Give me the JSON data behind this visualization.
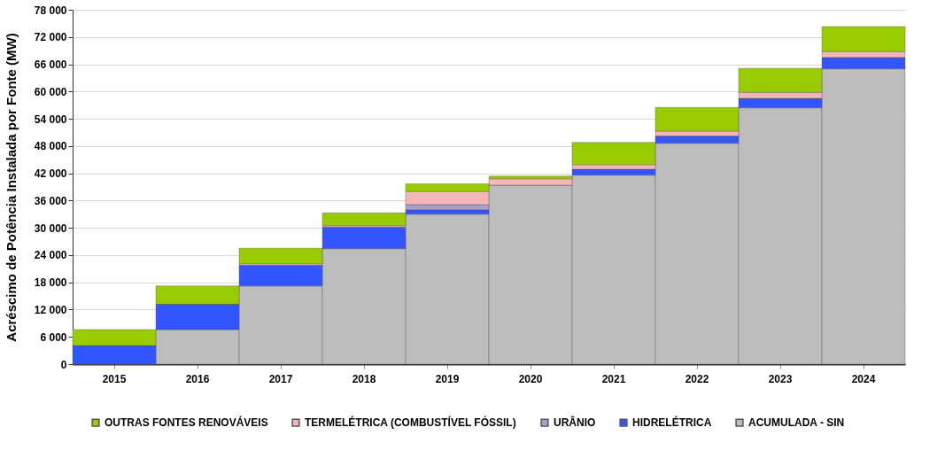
{
  "chart_data": {
    "type": "bar",
    "stacked": true,
    "ylabel": "Acréscimo de Potência Instalada  por Fonte (MW)",
    "categories": [
      "2015",
      "2016",
      "2017",
      "2018",
      "2019",
      "2020",
      "2021",
      "2022",
      "2023",
      "2024"
    ],
    "series": [
      {
        "name": "ACUMULADA - SIN",
        "color": "#bdbdbd",
        "values": [
          0,
          7600,
          17200,
          25400,
          33000,
          39400,
          41600,
          48600,
          56400,
          65000
        ]
      },
      {
        "name": "HIDRELÉTRICA",
        "color": "#3355ff",
        "values": [
          4100,
          5600,
          4600,
          4800,
          1000,
          null,
          1300,
          1600,
          2100,
          2500
        ]
      },
      {
        "name": "URÂNIO",
        "color": "#a9a0cc",
        "values": [
          0,
          0,
          0,
          0,
          1100,
          0,
          0,
          0,
          0,
          0
        ]
      },
      {
        "name": "TERMELÉTRICA (COMBUSTÍVEL FÓSSIL)",
        "color": "#f4b6b6",
        "values": [
          0,
          0,
          300,
          300,
          2900,
          1400,
          1000,
          1100,
          1300,
          1300
        ]
      },
      {
        "name": "OUTRAS FONTES RENOVÁVEIS",
        "color": "#99cc00",
        "values": [
          3500,
          4000,
          3400,
          2800,
          1700,
          600,
          4900,
          5200,
          5300,
          5500
        ]
      }
    ],
    "ylim": [
      0,
      78000
    ],
    "yticks": [
      {
        "value": 0,
        "label": "0"
      },
      {
        "value": 6000,
        "label": "6 000"
      },
      {
        "value": 12000,
        "label": "12 000"
      },
      {
        "value": 18000,
        "label": "18 000"
      },
      {
        "value": 24000,
        "label": "24 000"
      },
      {
        "value": 30000,
        "label": "30 000"
      },
      {
        "value": 36000,
        "label": "36 000"
      },
      {
        "value": 42000,
        "label": "42 000"
      },
      {
        "value": 48000,
        "label": "48 000"
      },
      {
        "value": 54000,
        "label": "54 000"
      },
      {
        "value": 60000,
        "label": "60 000"
      },
      {
        "value": 66000,
        "label": "66 000"
      },
      {
        "value": 72000,
        "label": "72 000"
      },
      {
        "value": 78000,
        "label": "78 000"
      }
    ],
    "grid": "y",
    "legend": "bottom"
  }
}
